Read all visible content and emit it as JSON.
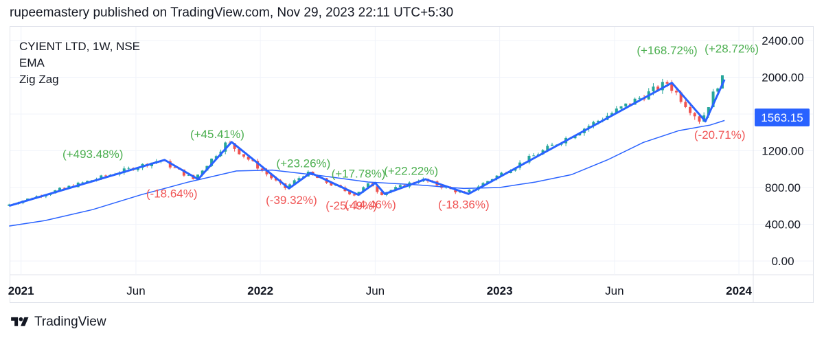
{
  "header": {
    "publish_text": "rupeemastery published on TradingView.com, Nov 29, 2023 22:11 UTC+5:30"
  },
  "legend": {
    "symbol": "CYIENT LTD, 1W, NSE",
    "indicator1": "EMA",
    "indicator2": "Zig Zag"
  },
  "footer": {
    "brand": "TradingView",
    "logo_icon": "tradingview-logo-icon"
  },
  "colors": {
    "up": "#26a69a",
    "down": "#ef5350",
    "zigzag": "#2962ff",
    "ema": "#2962ff",
    "label_up": "#4caf50",
    "label_down": "#f05454",
    "price_tag": "#2962ff"
  },
  "chart_data": {
    "type": "candlestick",
    "title": "CYIENT LTD, 1W, NSE",
    "ylim": [
      -150,
      2550
    ],
    "y_ticks": [
      0,
      400,
      800,
      1200,
      1600,
      2000,
      2400
    ],
    "y_tick_labels": [
      "0.00",
      "400.00",
      "800.00",
      "1200.00",
      "",
      "2000.00",
      "2400.00"
    ],
    "x_ticks": [
      {
        "t": 2021.0,
        "label": "2021",
        "bold": true
      },
      {
        "t": 2021.48,
        "label": "Jun",
        "bold": false
      },
      {
        "t": 2022.0,
        "label": "2022",
        "bold": true
      },
      {
        "t": 2022.48,
        "label": "Jun",
        "bold": false
      },
      {
        "t": 2023.0,
        "label": "2023",
        "bold": true
      },
      {
        "t": 2023.48,
        "label": "Jun",
        "bold": false
      },
      {
        "t": 2024.0,
        "label": "2024",
        "bold": true
      }
    ],
    "last_price": "1563.15",
    "last_price_value": 1563.15,
    "zigzag": [
      {
        "t": 2020.95,
        "v": 600
      },
      {
        "t": 2021.6,
        "v": 1100
      },
      {
        "t": 2021.74,
        "v": 890
      },
      {
        "t": 2021.88,
        "v": 1295
      },
      {
        "t": 2022.12,
        "v": 790
      },
      {
        "t": 2022.21,
        "v": 960
      },
      {
        "t": 2022.41,
        "v": 720
      },
      {
        "t": 2022.48,
        "v": 850
      },
      {
        "t": 2022.52,
        "v": 730
      },
      {
        "t": 2022.69,
        "v": 890
      },
      {
        "t": 2022.87,
        "v": 730
      },
      {
        "t": 2023.72,
        "v": 1940
      },
      {
        "t": 2023.86,
        "v": 1520
      },
      {
        "t": 2023.94,
        "v": 1975
      }
    ],
    "ema": [
      {
        "t": 2020.95,
        "v": 380
      },
      {
        "t": 2021.1,
        "v": 440
      },
      {
        "t": 2021.3,
        "v": 560
      },
      {
        "t": 2021.5,
        "v": 720
      },
      {
        "t": 2021.7,
        "v": 860
      },
      {
        "t": 2021.9,
        "v": 980
      },
      {
        "t": 2022.05,
        "v": 990
      },
      {
        "t": 2022.25,
        "v": 930
      },
      {
        "t": 2022.45,
        "v": 860
      },
      {
        "t": 2022.65,
        "v": 830
      },
      {
        "t": 2022.85,
        "v": 790
      },
      {
        "t": 2023.0,
        "v": 800
      },
      {
        "t": 2023.15,
        "v": 860
      },
      {
        "t": 2023.3,
        "v": 940
      },
      {
        "t": 2023.45,
        "v": 1100
      },
      {
        "t": 2023.6,
        "v": 1290
      },
      {
        "t": 2023.75,
        "v": 1420
      },
      {
        "t": 2023.88,
        "v": 1480
      },
      {
        "t": 2023.94,
        "v": 1530
      }
    ],
    "annotations": [
      {
        "t": 2021.3,
        "v": 1120,
        "text": "(+493.48%)",
        "dir": "up"
      },
      {
        "t": 2021.63,
        "v": 690,
        "text": "(-18.64%)",
        "dir": "down"
      },
      {
        "t": 2021.82,
        "v": 1340,
        "text": "(+45.41%)",
        "dir": "up"
      },
      {
        "t": 2022.13,
        "v": 620,
        "text": "(-39.32%)",
        "dir": "down"
      },
      {
        "t": 2022.18,
        "v": 1020,
        "text": "(+23.26%)",
        "dir": "up"
      },
      {
        "t": 2022.38,
        "v": 560,
        "text": "(-25.49%)",
        "dir": "down"
      },
      {
        "t": 2022.46,
        "v": 570,
        "text": "(-14.46%)",
        "dir": "down"
      },
      {
        "t": 2022.41,
        "v": 910,
        "text": "(+17.78%)",
        "dir": "up"
      },
      {
        "t": 2022.63,
        "v": 940,
        "text": "(+22.22%)",
        "dir": "up"
      },
      {
        "t": 2022.85,
        "v": 570,
        "text": "(-18.36%)",
        "dir": "down"
      },
      {
        "t": 2023.7,
        "v": 2250,
        "text": "(+168.72%)",
        "dir": "up"
      },
      {
        "t": 2023.97,
        "v": 2270,
        "text": "(+28.72%)",
        "dir": "up"
      },
      {
        "t": 2023.92,
        "v": 1330,
        "text": "(-20.71%)",
        "dir": "down"
      }
    ]
  }
}
